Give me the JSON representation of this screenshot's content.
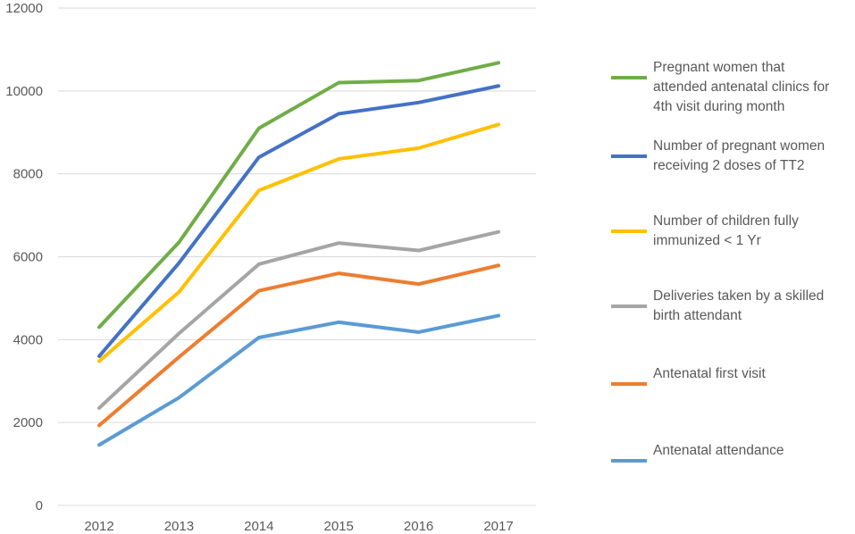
{
  "chart_data": {
    "type": "line",
    "title": "",
    "xlabel": "",
    "ylabel": "",
    "categories": [
      "2012",
      "2013",
      "2014",
      "2015",
      "2016",
      "2017"
    ],
    "yticks": [
      "0",
      "2000",
      "4000",
      "6000",
      "8000",
      "10000",
      "12000"
    ],
    "ylim": [
      0,
      12000
    ],
    "grid": true,
    "legend_position": "right",
    "series": [
      {
        "name": "Pregnant women that attended antenatal clinics for 4th visit during month",
        "color": "#70ad47",
        "values": [
          4300,
          6350,
          9100,
          10200,
          10250,
          10680
        ]
      },
      {
        "name": "Number of pregnant women receiving 2 doses of TT2",
        "color": "#4472c4",
        "values": [
          3600,
          5850,
          8400,
          9450,
          9720,
          10120
        ]
      },
      {
        "name": "Number of children fully immunized < 1 Yr",
        "color": "#ffc000",
        "values": [
          3480,
          5150,
          7600,
          8360,
          8620,
          9190
        ]
      },
      {
        "name": "Deliveries taken by a skilled birth attendant",
        "color": "#a5a5a5",
        "values": [
          2350,
          4150,
          5820,
          6330,
          6150,
          6600
        ]
      },
      {
        "name": "Antenatal first visit",
        "color": "#ed7d31",
        "values": [
          1930,
          3580,
          5180,
          5600,
          5340,
          5790
        ]
      },
      {
        "name": "Antenatal attendance",
        "color": "#5b9bd5",
        "values": [
          1460,
          2600,
          4050,
          4420,
          4180,
          4580
        ]
      }
    ]
  },
  "legend": {
    "labels": [
      "Pregnant women that\nattended antenatal clinics for\n4th visit during month",
      "Number of pregnant women\nreceiving 2 doses of TT2",
      "Number of children fully\nimmunized < 1 Yr",
      "Deliveries taken by a skilled\nbirth attendant",
      "Antenatal first visit",
      "Antenatal attendance"
    ]
  }
}
